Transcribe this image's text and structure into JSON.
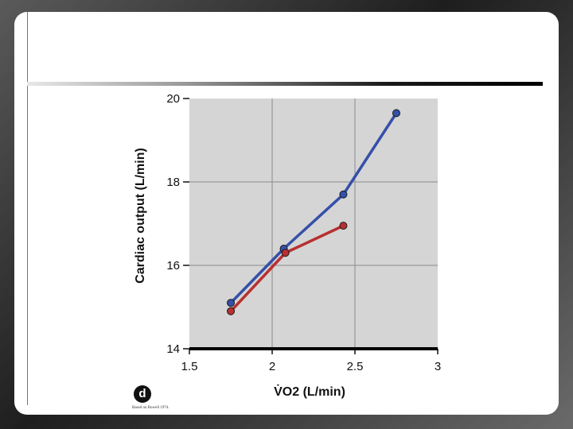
{
  "chart_data": {
    "type": "line",
    "xlabel": "V̇O2 (L/min)",
    "ylabel": "Cardiac output (L/min)",
    "xlim": [
      1.5,
      3
    ],
    "ylim": [
      14,
      20
    ],
    "x_ticks": [
      "1.5",
      "2",
      "2.5",
      "3"
    ],
    "y_ticks": [
      "14",
      "16",
      "18",
      "20"
    ],
    "grid": true,
    "series": [
      {
        "color": "#3550a8",
        "x": [
          1.75,
          2.07,
          2.43,
          2.75
        ],
        "y": [
          15.1,
          16.4,
          17.7,
          19.65
        ]
      },
      {
        "color": "#b83030",
        "x": [
          1.75,
          2.08,
          2.43
        ],
        "y": [
          14.9,
          16.3,
          16.95
        ]
      }
    ]
  },
  "brand": {
    "logo_letter": "d",
    "source_note": "Based on Rowell 1974."
  }
}
